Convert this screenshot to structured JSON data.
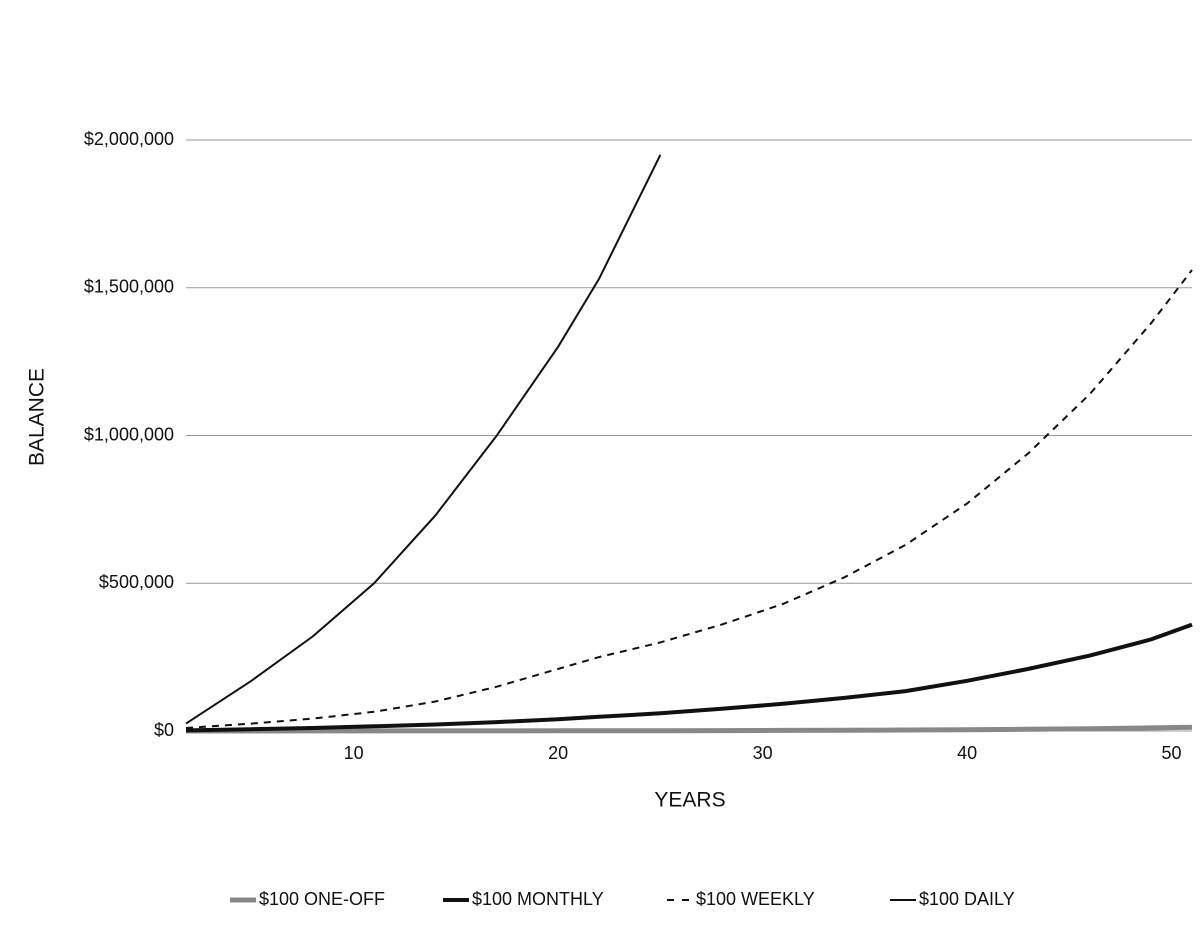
{
  "chart_data": {
    "type": "line",
    "x_label": "YEARS",
    "y_label": "BALANCE",
    "x": [
      1.8,
      5,
      8,
      11,
      14,
      17,
      20,
      22,
      25,
      28,
      31,
      34,
      37,
      40,
      43,
      46,
      49,
      51
    ],
    "series": [
      {
        "name": "$100 ONE-OFF",
        "color": "#888888",
        "width": 5,
        "dashed": false,
        "values": [
          120,
          160,
          210,
          280,
          370,
          500,
          660,
          800,
          1060,
          1410,
          1880,
          2500,
          3330,
          4430,
          5900,
          7850,
          10440,
          12600
        ]
      },
      {
        "name": "$100 MONTHLY",
        "color": "#111111",
        "width": 4,
        "dashed": false,
        "values": [
          2000,
          6000,
          10000,
          16000,
          22000,
          30000,
          40000,
          48000,
          60000,
          75000,
          92000,
          112000,
          135000,
          170000,
          210000,
          255000,
          310000,
          360000
        ]
      },
      {
        "name": "$100 WEEKLY",
        "color": "#111111",
        "width": 2,
        "dashed": true,
        "values": [
          10000,
          25000,
          42000,
          65000,
          100000,
          150000,
          210000,
          250000,
          300000,
          360000,
          430000,
          520000,
          630000,
          770000,
          940000,
          1140000,
          1380000,
          1560000
        ]
      },
      {
        "name": "$100 DAILY",
        "color": "#111111",
        "width": 2,
        "dashed": false,
        "values": [
          25000,
          170000,
          320000,
          500000,
          730000,
          1000000,
          1300000,
          1530000,
          1950000,
          null,
          null,
          null,
          null,
          null,
          null,
          null,
          null,
          null
        ]
      }
    ],
    "xlim": [
      1.8,
      51
    ],
    "xticks": [
      10,
      20,
      30,
      40,
      50
    ],
    "ylim": [
      0,
      2000000
    ],
    "yticks": [
      {
        "value": 0,
        "label": "$0"
      },
      {
        "value": 500000,
        "label": "$500,000"
      },
      {
        "value": 1000000,
        "label": "$1,000,000"
      },
      {
        "value": 1500000,
        "label": "$1,500,000"
      },
      {
        "value": 2000000,
        "label": "$2,000,000"
      }
    ],
    "grid": true,
    "legend": "bottom"
  }
}
